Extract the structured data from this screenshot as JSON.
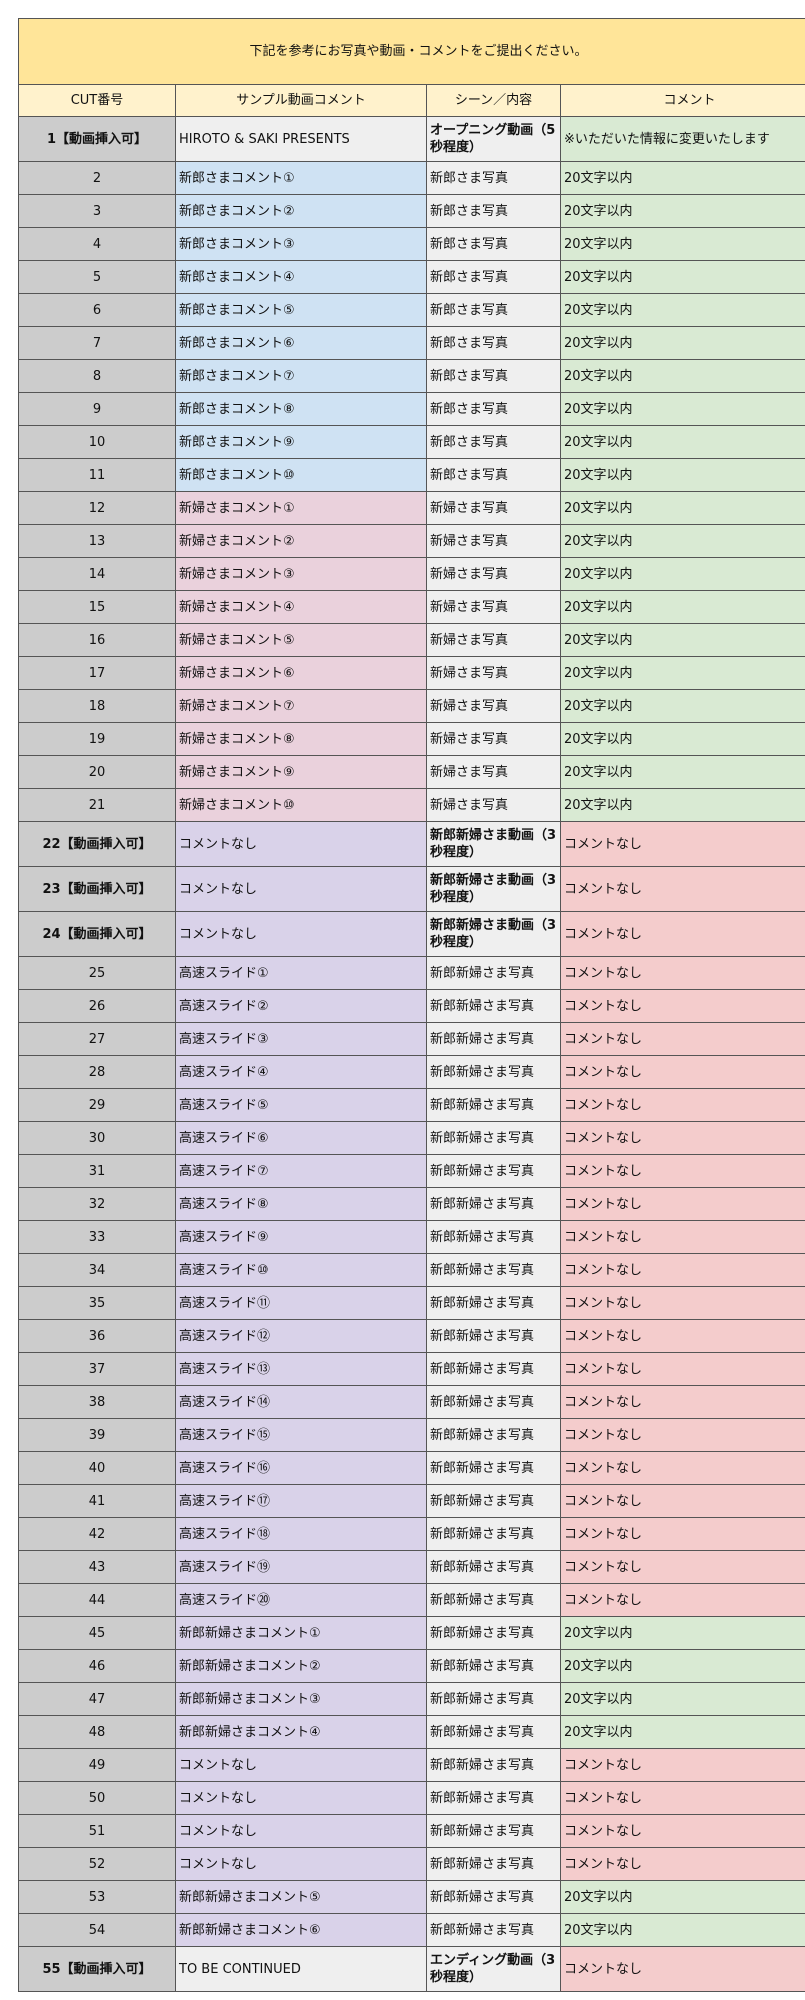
{
  "title": "下記を参考にお写真や動画・コメントをご提出ください。",
  "headers": [
    "CUT番号",
    "サンプル動画コメント",
    "シーン／内容",
    "コメント"
  ],
  "colors": {
    "title": "#ffe599",
    "header": "#fff2cc",
    "cut": "#cccccc",
    "gray": "#efefef",
    "blue": "#cfe2f3",
    "pink": "#ead1dc",
    "purple": "#d9d2e9",
    "green": "#d9ead3",
    "red": "#f4cccc"
  },
  "rows": [
    {
      "cut": "1【動画挿入可】",
      "sample": "HIROTO & SAKI PRESENTS",
      "scene": "オープニング動画（5秒程度）",
      "comment": "※いただいた情報に変更いたします",
      "sample_color": "gray",
      "comment_color": "green"
    },
    {
      "cut": "2",
      "sample": "新郎さまコメント①",
      "scene": "新郎さま写真",
      "comment": "20文字以内",
      "sample_color": "blue",
      "comment_color": "green"
    },
    {
      "cut": "3",
      "sample": "新郎さまコメント②",
      "scene": "新郎さま写真",
      "comment": "20文字以内",
      "sample_color": "blue",
      "comment_color": "green"
    },
    {
      "cut": "4",
      "sample": "新郎さまコメント③",
      "scene": "新郎さま写真",
      "comment": "20文字以内",
      "sample_color": "blue",
      "comment_color": "green"
    },
    {
      "cut": "5",
      "sample": "新郎さまコメント④",
      "scene": "新郎さま写真",
      "comment": "20文字以内",
      "sample_color": "blue",
      "comment_color": "green"
    },
    {
      "cut": "6",
      "sample": "新郎さまコメント⑤",
      "scene": "新郎さま写真",
      "comment": "20文字以内",
      "sample_color": "blue",
      "comment_color": "green"
    },
    {
      "cut": "7",
      "sample": "新郎さまコメント⑥",
      "scene": "新郎さま写真",
      "comment": "20文字以内",
      "sample_color": "blue",
      "comment_color": "green"
    },
    {
      "cut": "8",
      "sample": "新郎さまコメント⑦",
      "scene": "新郎さま写真",
      "comment": "20文字以内",
      "sample_color": "blue",
      "comment_color": "green"
    },
    {
      "cut": "9",
      "sample": "新郎さまコメント⑧",
      "scene": "新郎さま写真",
      "comment": "20文字以内",
      "sample_color": "blue",
      "comment_color": "green"
    },
    {
      "cut": "10",
      "sample": "新郎さまコメント⑨",
      "scene": "新郎さま写真",
      "comment": "20文字以内",
      "sample_color": "blue",
      "comment_color": "green"
    },
    {
      "cut": "11",
      "sample": "新郎さまコメント⑩",
      "scene": "新郎さま写真",
      "comment": "20文字以内",
      "sample_color": "blue",
      "comment_color": "green"
    },
    {
      "cut": "12",
      "sample": "新婦さまコメント①",
      "scene": "新婦さま写真",
      "comment": "20文字以内",
      "sample_color": "pink",
      "comment_color": "green"
    },
    {
      "cut": "13",
      "sample": "新婦さまコメント②",
      "scene": "新婦さま写真",
      "comment": "20文字以内",
      "sample_color": "pink",
      "comment_color": "green"
    },
    {
      "cut": "14",
      "sample": "新婦さまコメント③",
      "scene": "新婦さま写真",
      "comment": "20文字以内",
      "sample_color": "pink",
      "comment_color": "green"
    },
    {
      "cut": "15",
      "sample": "新婦さまコメント④",
      "scene": "新婦さま写真",
      "comment": "20文字以内",
      "sample_color": "pink",
      "comment_color": "green"
    },
    {
      "cut": "16",
      "sample": "新婦さまコメント⑤",
      "scene": "新婦さま写真",
      "comment": "20文字以内",
      "sample_color": "pink",
      "comment_color": "green"
    },
    {
      "cut": "17",
      "sample": "新婦さまコメント⑥",
      "scene": "新婦さま写真",
      "comment": "20文字以内",
      "sample_color": "pink",
      "comment_color": "green"
    },
    {
      "cut": "18",
      "sample": "新婦さまコメント⑦",
      "scene": "新婦さま写真",
      "comment": "20文字以内",
      "sample_color": "pink",
      "comment_color": "green"
    },
    {
      "cut": "19",
      "sample": "新婦さまコメント⑧",
      "scene": "新婦さま写真",
      "comment": "20文字以内",
      "sample_color": "pink",
      "comment_color": "green"
    },
    {
      "cut": "20",
      "sample": "新婦さまコメント⑨",
      "scene": "新婦さま写真",
      "comment": "20文字以内",
      "sample_color": "pink",
      "comment_color": "green"
    },
    {
      "cut": "21",
      "sample": "新婦さまコメント⑩",
      "scene": "新婦さま写真",
      "comment": "20文字以内",
      "sample_color": "pink",
      "comment_color": "green"
    },
    {
      "cut": "22【動画挿入可】",
      "sample": "コメントなし",
      "scene": "新郎新婦さま動画（3秒程度）",
      "comment": "コメントなし",
      "sample_color": "purple",
      "comment_color": "red"
    },
    {
      "cut": "23【動画挿入可】",
      "sample": "コメントなし",
      "scene": "新郎新婦さま動画（3秒程度）",
      "comment": "コメントなし",
      "sample_color": "purple",
      "comment_color": "red"
    },
    {
      "cut": "24【動画挿入可】",
      "sample": "コメントなし",
      "scene": "新郎新婦さま動画（3秒程度）",
      "comment": "コメントなし",
      "sample_color": "purple",
      "comment_color": "red"
    },
    {
      "cut": "25",
      "sample": "高速スライド①",
      "scene": "新郎新婦さま写真",
      "comment": "コメントなし",
      "sample_color": "purple",
      "comment_color": "red"
    },
    {
      "cut": "26",
      "sample": "高速スライド②",
      "scene": "新郎新婦さま写真",
      "comment": "コメントなし",
      "sample_color": "purple",
      "comment_color": "red"
    },
    {
      "cut": "27",
      "sample": "高速スライド③",
      "scene": "新郎新婦さま写真",
      "comment": "コメントなし",
      "sample_color": "purple",
      "comment_color": "red"
    },
    {
      "cut": "28",
      "sample": "高速スライド④",
      "scene": "新郎新婦さま写真",
      "comment": "コメントなし",
      "sample_color": "purple",
      "comment_color": "red"
    },
    {
      "cut": "29",
      "sample": "高速スライド⑤",
      "scene": "新郎新婦さま写真",
      "comment": "コメントなし",
      "sample_color": "purple",
      "comment_color": "red"
    },
    {
      "cut": "30",
      "sample": "高速スライド⑥",
      "scene": "新郎新婦さま写真",
      "comment": "コメントなし",
      "sample_color": "purple",
      "comment_color": "red"
    },
    {
      "cut": "31",
      "sample": "高速スライド⑦",
      "scene": "新郎新婦さま写真",
      "comment": "コメントなし",
      "sample_color": "purple",
      "comment_color": "red"
    },
    {
      "cut": "32",
      "sample": "高速スライド⑧",
      "scene": "新郎新婦さま写真",
      "comment": "コメントなし",
      "sample_color": "purple",
      "comment_color": "red"
    },
    {
      "cut": "33",
      "sample": "高速スライド⑨",
      "scene": "新郎新婦さま写真",
      "comment": "コメントなし",
      "sample_color": "purple",
      "comment_color": "red"
    },
    {
      "cut": "34",
      "sample": "高速スライド⑩",
      "scene": "新郎新婦さま写真",
      "comment": "コメントなし",
      "sample_color": "purple",
      "comment_color": "red"
    },
    {
      "cut": "35",
      "sample": "高速スライド⑪",
      "scene": "新郎新婦さま写真",
      "comment": "コメントなし",
      "sample_color": "purple",
      "comment_color": "red"
    },
    {
      "cut": "36",
      "sample": "高速スライド⑫",
      "scene": "新郎新婦さま写真",
      "comment": "コメントなし",
      "sample_color": "purple",
      "comment_color": "red"
    },
    {
      "cut": "37",
      "sample": "高速スライド⑬",
      "scene": "新郎新婦さま写真",
      "comment": "コメントなし",
      "sample_color": "purple",
      "comment_color": "red"
    },
    {
      "cut": "38",
      "sample": "高速スライド⑭",
      "scene": "新郎新婦さま写真",
      "comment": "コメントなし",
      "sample_color": "purple",
      "comment_color": "red"
    },
    {
      "cut": "39",
      "sample": "高速スライド⑮",
      "scene": "新郎新婦さま写真",
      "comment": "コメントなし",
      "sample_color": "purple",
      "comment_color": "red"
    },
    {
      "cut": "40",
      "sample": "高速スライド⑯",
      "scene": "新郎新婦さま写真",
      "comment": "コメントなし",
      "sample_color": "purple",
      "comment_color": "red"
    },
    {
      "cut": "41",
      "sample": "高速スライド⑰",
      "scene": "新郎新婦さま写真",
      "comment": "コメントなし",
      "sample_color": "purple",
      "comment_color": "red"
    },
    {
      "cut": "42",
      "sample": "高速スライド⑱",
      "scene": "新郎新婦さま写真",
      "comment": "コメントなし",
      "sample_color": "purple",
      "comment_color": "red"
    },
    {
      "cut": "43",
      "sample": "高速スライド⑲",
      "scene": "新郎新婦さま写真",
      "comment": "コメントなし",
      "sample_color": "purple",
      "comment_color": "red"
    },
    {
      "cut": "44",
      "sample": "高速スライド⑳",
      "scene": "新郎新婦さま写真",
      "comment": "コメントなし",
      "sample_color": "purple",
      "comment_color": "red"
    },
    {
      "cut": "45",
      "sample": "新郎新婦さまコメント①",
      "scene": "新郎新婦さま写真",
      "comment": "20文字以内",
      "sample_color": "purple",
      "comment_color": "green"
    },
    {
      "cut": "46",
      "sample": "新郎新婦さまコメント②",
      "scene": "新郎新婦さま写真",
      "comment": "20文字以内",
      "sample_color": "purple",
      "comment_color": "green"
    },
    {
      "cut": "47",
      "sample": "新郎新婦さまコメント③",
      "scene": "新郎新婦さま写真",
      "comment": "20文字以内",
      "sample_color": "purple",
      "comment_color": "green"
    },
    {
      "cut": "48",
      "sample": "新郎新婦さまコメント④",
      "scene": "新郎新婦さま写真",
      "comment": "20文字以内",
      "sample_color": "purple",
      "comment_color": "green"
    },
    {
      "cut": "49",
      "sample": "コメントなし",
      "scene": "新郎新婦さま写真",
      "comment": "コメントなし",
      "sample_color": "purple",
      "comment_color": "red"
    },
    {
      "cut": "50",
      "sample": "コメントなし",
      "scene": "新郎新婦さま写真",
      "comment": "コメントなし",
      "sample_color": "purple",
      "comment_color": "red"
    },
    {
      "cut": "51",
      "sample": "コメントなし",
      "scene": "新郎新婦さま写真",
      "comment": "コメントなし",
      "sample_color": "purple",
      "comment_color": "red"
    },
    {
      "cut": "52",
      "sample": "コメントなし",
      "scene": "新郎新婦さま写真",
      "comment": "コメントなし",
      "sample_color": "purple",
      "comment_color": "red"
    },
    {
      "cut": "53",
      "sample": "新郎新婦さまコメント⑤",
      "scene": "新郎新婦さま写真",
      "comment": "20文字以内",
      "sample_color": "purple",
      "comment_color": "green"
    },
    {
      "cut": "54",
      "sample": "新郎新婦さまコメント⑥",
      "scene": "新郎新婦さま写真",
      "comment": "20文字以内",
      "sample_color": "purple",
      "comment_color": "green"
    },
    {
      "cut": "55【動画挿入可】",
      "sample": "TO BE CONTINUED",
      "scene": "エンディング動画（3秒程度）",
      "comment": "コメントなし",
      "sample_color": "gray",
      "comment_color": "red"
    }
  ]
}
